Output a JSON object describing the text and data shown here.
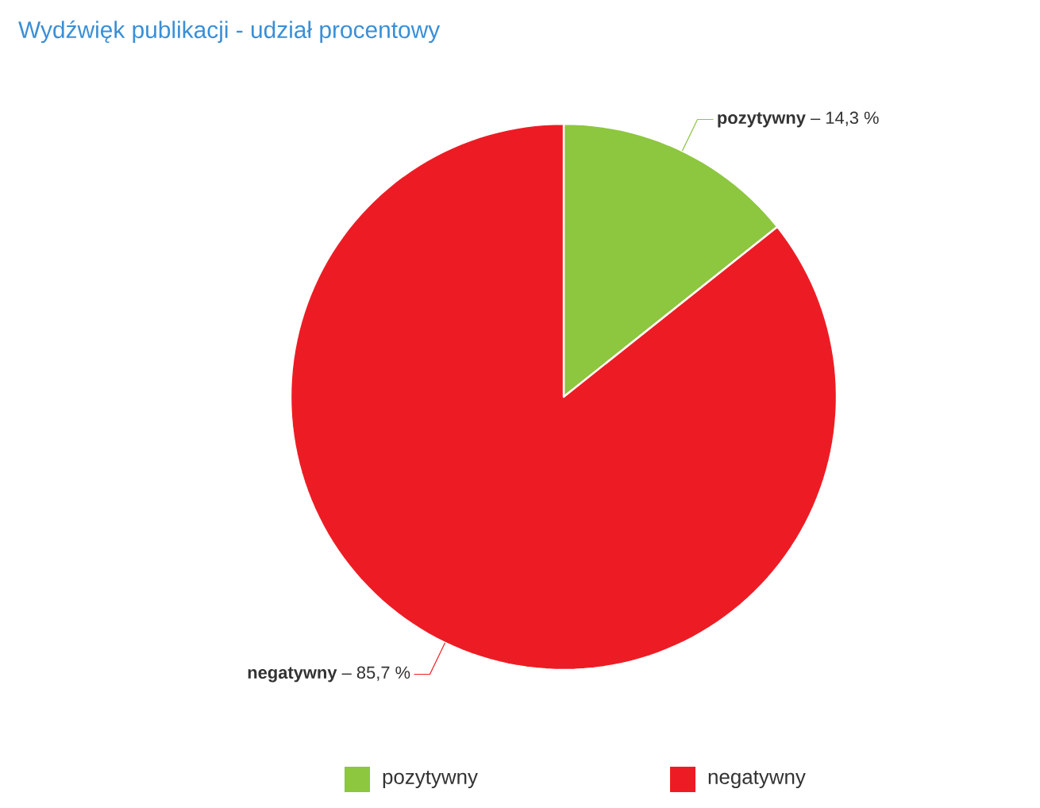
{
  "chart_data": {
    "type": "pie",
    "title": "Wydźwięk publikacji - udział procentowy",
    "categories": [
      "pozytywny",
      "negatywny"
    ],
    "values": [
      14.3,
      85.7
    ],
    "colors": [
      "#8dc63f",
      "#ed1c24"
    ],
    "value_labels": [
      "14,3 %",
      "85,7 %"
    ],
    "annotations": [
      "–",
      "–"
    ],
    "legend": "bottom"
  }
}
